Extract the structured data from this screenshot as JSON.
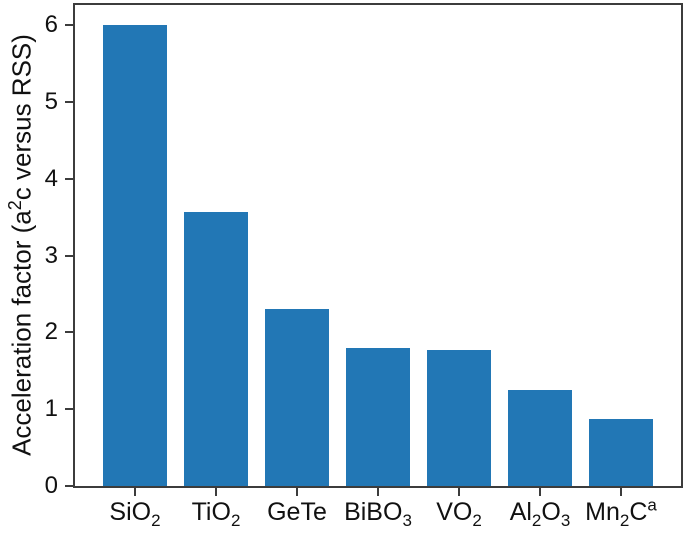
{
  "chart_data": {
    "type": "bar",
    "title": "",
    "ylabel": {
      "pre": "Acceleration factor (a",
      "sup": "2",
      "post": "c versus RSS)"
    },
    "xlabel": "",
    "categories": [
      "SiO₂",
      "TiO₂",
      "GeTe",
      "BiBO₃",
      "VO₂",
      "Al₂O₃",
      "Mn₂Cᵃ"
    ],
    "category_segments": [
      [
        {
          "t": "SiO",
          "s": "n"
        },
        {
          "t": "2",
          "s": "sub"
        }
      ],
      [
        {
          "t": "TiO",
          "s": "n"
        },
        {
          "t": "2",
          "s": "sub"
        }
      ],
      [
        {
          "t": "GeTe",
          "s": "n"
        }
      ],
      [
        {
          "t": "BiBO",
          "s": "n"
        },
        {
          "t": "3",
          "s": "sub"
        }
      ],
      [
        {
          "t": "VO",
          "s": "n"
        },
        {
          "t": "2",
          "s": "sub"
        }
      ],
      [
        {
          "t": "Al",
          "s": "n"
        },
        {
          "t": "2",
          "s": "sub"
        },
        {
          "t": "O",
          "s": "n"
        },
        {
          "t": "3",
          "s": "sub"
        }
      ],
      [
        {
          "t": "Mn",
          "s": "n"
        },
        {
          "t": "2",
          "s": "sub"
        },
        {
          "t": "C",
          "s": "n"
        },
        {
          "t": "a",
          "s": "sup"
        }
      ]
    ],
    "values": [
      6.0,
      3.57,
      2.3,
      1.8,
      1.77,
      1.25,
      0.87
    ],
    "yticks": [
      0,
      1,
      2,
      3,
      4,
      5,
      6
    ],
    "ylim": [
      0,
      6.26
    ],
    "xlim": [
      -0.74,
      6.74
    ],
    "bar_width": 0.8,
    "bar_color": "#2277b5",
    "axis_color": "#3c3c3c",
    "text_color": "#111111",
    "grid": false,
    "legend": null
  }
}
